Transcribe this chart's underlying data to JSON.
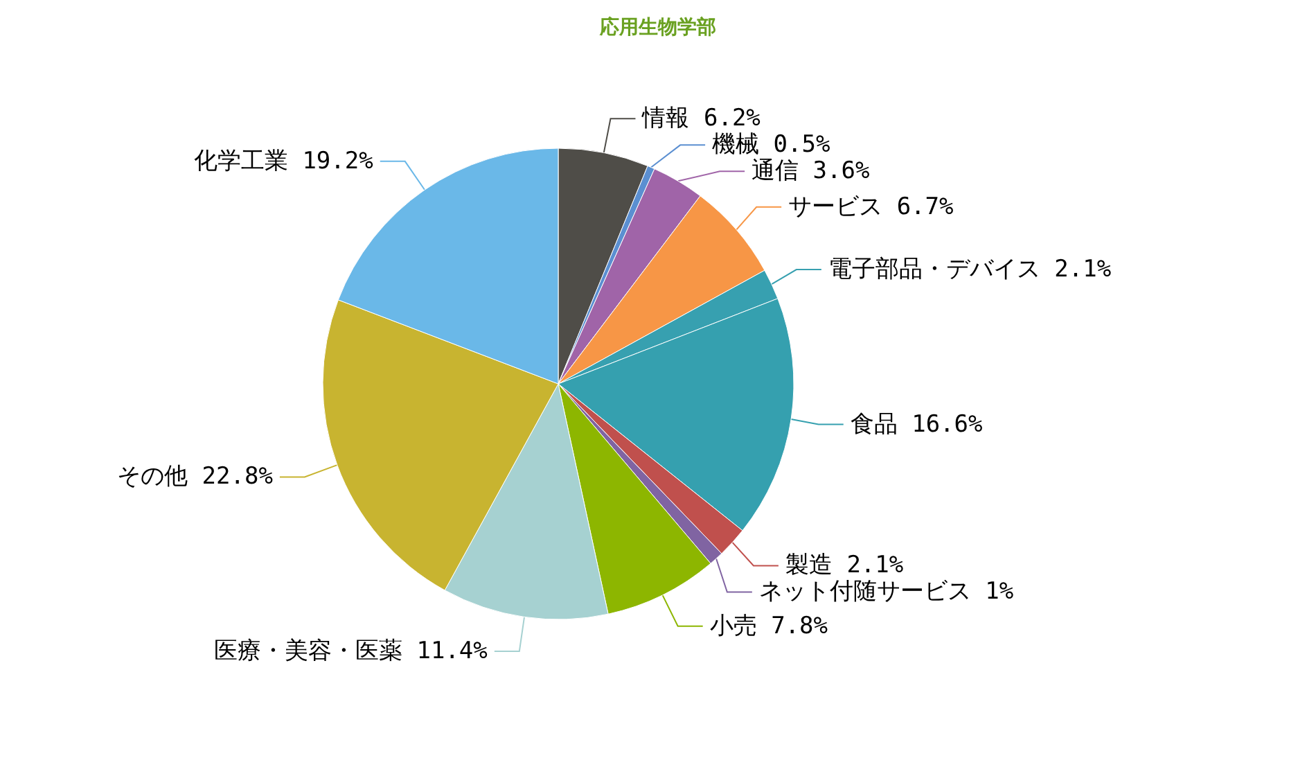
{
  "chart_data": {
    "type": "pie",
    "title": "応用生物学部",
    "categories": [
      "情報",
      "機械",
      "通信",
      "サービス",
      "電子部品・デバイス",
      "食品",
      "製造",
      "ネット付随サービス",
      "小売",
      "医療・美容・医薬",
      "その他",
      "化学工業"
    ],
    "values": [
      6.2,
      0.5,
      3.6,
      6.7,
      2.1,
      16.6,
      2.1,
      1,
      7.8,
      11.4,
      22.8,
      19.2
    ],
    "value_labels": [
      "6.2%",
      "0.5%",
      "3.6%",
      "6.7%",
      "2.1%",
      "16.6%",
      "2.1%",
      "1%",
      "7.8%",
      "11.4%",
      "22.8%",
      "19.2%"
    ],
    "colors": [
      "#4f4d48",
      "#5b8fd1",
      "#a064a8",
      "#f79646",
      "#37a0b0",
      "#35a0af",
      "#c0504d",
      "#8064a2",
      "#8db600",
      "#a6d1d1",
      "#c8b430",
      "#6ab8e8"
    ],
    "legend": false
  }
}
